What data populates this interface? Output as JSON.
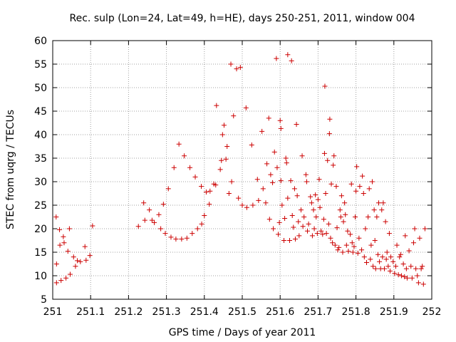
{
  "chart_data": {
    "type": "scatter",
    "title": "Rec. sulp (Lon=24, Lat=49, h=HE), days 250-251, 2011, window 004",
    "xlabel": "GPS time / Days of year 2011",
    "ylabel": "STEC from uqrg / TECUs",
    "xlim": [
      251,
      252
    ],
    "ylim": [
      5,
      60
    ],
    "xticks": [
      251,
      251.1,
      251.2,
      251.3,
      251.4,
      251.5,
      251.6,
      251.7,
      251.8,
      251.9,
      252
    ],
    "xtick_labels": [
      "251",
      "251.1",
      "251.2",
      "251.3",
      "251.4",
      "251.5",
      "251.6",
      "251.7",
      "251.8",
      "251.9",
      "252"
    ],
    "yticks": [
      5,
      10,
      15,
      20,
      25,
      30,
      35,
      40,
      45,
      50,
      55,
      60
    ],
    "ytick_labels": [
      "5",
      "10",
      "15",
      "20",
      "25",
      "30",
      "35",
      "40",
      "45",
      "50",
      "55",
      "60"
    ],
    "grid": true,
    "marker": "+",
    "color": "#cc0000",
    "points": [
      [
        251.009,
        22.5
      ],
      [
        251.01,
        12.5
      ],
      [
        251.01,
        8.5
      ],
      [
        251.018,
        19.8
      ],
      [
        251.019,
        16.5
      ],
      [
        251.022,
        9.0
      ],
      [
        251.028,
        18.3
      ],
      [
        251.03,
        17.0
      ],
      [
        251.035,
        9.5
      ],
      [
        251.04,
        15.2
      ],
      [
        251.044,
        20.0
      ],
      [
        251.046,
        10.3
      ],
      [
        251.055,
        14.0
      ],
      [
        251.06,
        12.0
      ],
      [
        251.065,
        13.2
      ],
      [
        251.073,
        13.0
      ],
      [
        251.085,
        16.2
      ],
      [
        251.088,
        13.3
      ],
      [
        251.098,
        14.3
      ],
      [
        251.105,
        20.6
      ],
      [
        251.226,
        20.5
      ],
      [
        251.24,
        25.5
      ],
      [
        251.243,
        21.8
      ],
      [
        251.255,
        24.0
      ],
      [
        251.262,
        21.8
      ],
      [
        251.268,
        21.3
      ],
      [
        251.28,
        23.0
      ],
      [
        251.285,
        20.0
      ],
      [
        251.292,
        25.2
      ],
      [
        251.297,
        19.0
      ],
      [
        251.305,
        28.5
      ],
      [
        251.312,
        18.2
      ],
      [
        251.32,
        33.0
      ],
      [
        251.325,
        17.8
      ],
      [
        251.333,
        38.0
      ],
      [
        251.34,
        17.8
      ],
      [
        251.347,
        35.5
      ],
      [
        251.354,
        18.0
      ],
      [
        251.362,
        33.0
      ],
      [
        251.368,
        19.0
      ],
      [
        251.376,
        31.0
      ],
      [
        251.382,
        20.0
      ],
      [
        251.392,
        29.0
      ],
      [
        251.393,
        21.0
      ],
      [
        251.4,
        22.8
      ],
      [
        251.405,
        27.8
      ],
      [
        251.413,
        25.2
      ],
      [
        251.415,
        28.0
      ],
      [
        251.425,
        29.5
      ],
      [
        251.43,
        29.3
      ],
      [
        251.432,
        46.2
      ],
      [
        251.442,
        32.6
      ],
      [
        251.445,
        34.5
      ],
      [
        251.448,
        40.0
      ],
      [
        251.452,
        42.0
      ],
      [
        251.457,
        34.8
      ],
      [
        251.46,
        37.5
      ],
      [
        251.465,
        27.5
      ],
      [
        251.47,
        55.0
      ],
      [
        251.472,
        30.0
      ],
      [
        251.477,
        44.0
      ],
      [
        251.485,
        54.0
      ],
      [
        251.49,
        26.5
      ],
      [
        251.495,
        54.3
      ],
      [
        251.5,
        25.0
      ],
      [
        251.51,
        45.7
      ],
      [
        251.512,
        24.5
      ],
      [
        251.525,
        37.8
      ],
      [
        251.528,
        25.0
      ],
      [
        251.54,
        30.5
      ],
      [
        251.543,
        26.0
      ],
      [
        251.552,
        40.7
      ],
      [
        251.555,
        28.5
      ],
      [
        251.562,
        25.5
      ],
      [
        251.565,
        33.8
      ],
      [
        251.57,
        43.5
      ],
      [
        251.575,
        31.5
      ],
      [
        251.572,
        22.0
      ],
      [
        251.58,
        29.8
      ],
      [
        251.582,
        20.0
      ],
      [
        251.585,
        36.3
      ],
      [
        251.59,
        56.2
      ],
      [
        251.592,
        33.0
      ],
      [
        251.595,
        18.8
      ],
      [
        251.598,
        21.3
      ],
      [
        251.6,
        43.0
      ],
      [
        251.602,
        41.3
      ],
      [
        251.602,
        30.2
      ],
      [
        251.605,
        25.0
      ],
      [
        251.61,
        17.5
      ],
      [
        251.612,
        22.2
      ],
      [
        251.615,
        35.0
      ],
      [
        251.617,
        34.0
      ],
      [
        251.62,
        57.0
      ],
      [
        251.62,
        26.5
      ],
      [
        251.625,
        17.5
      ],
      [
        251.628,
        30.2
      ],
      [
        251.63,
        55.7
      ],
      [
        251.632,
        22.8
      ],
      [
        251.635,
        20.3
      ],
      [
        251.638,
        28.5
      ],
      [
        251.64,
        17.8
      ],
      [
        251.643,
        42.2
      ],
      [
        251.645,
        27.0
      ],
      [
        251.648,
        21.5
      ],
      [
        251.65,
        18.5
      ],
      [
        251.655,
        24.0
      ],
      [
        251.658,
        35.5
      ],
      [
        251.66,
        20.5
      ],
      [
        251.663,
        22.5
      ],
      [
        251.668,
        31.5
      ],
      [
        251.67,
        30.0
      ],
      [
        251.672,
        19.5
      ],
      [
        251.675,
        21.0
      ],
      [
        251.68,
        26.8
      ],
      [
        251.683,
        25.5
      ],
      [
        251.685,
        18.5
      ],
      [
        251.688,
        24.0
      ],
      [
        251.69,
        20.0
      ],
      [
        251.693,
        27.2
      ],
      [
        251.695,
        22.5
      ],
      [
        251.698,
        19.0
      ],
      [
        251.7,
        26.2
      ],
      [
        251.703,
        30.5
      ],
      [
        251.705,
        24.5
      ],
      [
        251.708,
        19.5
      ],
      [
        251.712,
        18.8
      ],
      [
        251.715,
        22.0
      ],
      [
        251.717,
        36.0
      ],
      [
        251.718,
        50.3
      ],
      [
        251.72,
        27.5
      ],
      [
        251.722,
        19.0
      ],
      [
        251.725,
        34.5
      ],
      [
        251.728,
        21.0
      ],
      [
        251.73,
        40.2
      ],
      [
        251.731,
        43.3
      ],
      [
        251.733,
        18.0
      ],
      [
        251.735,
        29.5
      ],
      [
        251.738,
        17.0
      ],
      [
        251.74,
        33.5
      ],
      [
        251.742,
        35.5
      ],
      [
        251.745,
        16.5
      ],
      [
        251.748,
        29.0
      ],
      [
        251.75,
        20.2
      ],
      [
        251.752,
        15.5
      ],
      [
        251.755,
        16.0
      ],
      [
        251.758,
        24.0
      ],
      [
        251.76,
        22.5
      ],
      [
        251.762,
        27.0
      ],
      [
        251.765,
        15.0
      ],
      [
        251.767,
        21.5
      ],
      [
        251.77,
        25.5
      ],
      [
        251.772,
        23.0
      ],
      [
        251.775,
        16.5
      ],
      [
        251.778,
        19.5
      ],
      [
        251.78,
        15.2
      ],
      [
        251.785,
        18.8
      ],
      [
        251.788,
        29.5
      ],
      [
        251.79,
        17.0
      ],
      [
        251.792,
        15.0
      ],
      [
        251.795,
        16.2
      ],
      [
        251.798,
        22.5
      ],
      [
        251.8,
        28.0
      ],
      [
        251.802,
        33.2
      ],
      [
        251.805,
        14.8
      ],
      [
        251.808,
        18.0
      ],
      [
        251.81,
        29.0
      ],
      [
        251.815,
        15.5
      ],
      [
        251.817,
        31.2
      ],
      [
        251.82,
        27.5
      ],
      [
        251.822,
        14.0
      ],
      [
        251.825,
        20.0
      ],
      [
        251.828,
        12.8
      ],
      [
        251.832,
        22.5
      ],
      [
        251.835,
        28.5
      ],
      [
        251.838,
        13.5
      ],
      [
        251.84,
        16.5
      ],
      [
        251.843,
        30.0
      ],
      [
        251.845,
        12.0
      ],
      [
        251.848,
        24.0
      ],
      [
        251.85,
        17.5
      ],
      [
        251.852,
        11.5
      ],
      [
        251.855,
        22.5
      ],
      [
        251.858,
        14.5
      ],
      [
        251.86,
        25.5
      ],
      [
        251.862,
        13.0
      ],
      [
        251.865,
        11.5
      ],
      [
        251.868,
        24.0
      ],
      [
        251.87,
        14.0
      ],
      [
        251.872,
        25.5
      ],
      [
        251.875,
        11.5
      ],
      [
        251.878,
        21.5
      ],
      [
        251.88,
        13.5
      ],
      [
        251.882,
        15.0
      ],
      [
        251.885,
        12.0
      ],
      [
        251.888,
        19.0
      ],
      [
        251.89,
        11.0
      ],
      [
        251.892,
        14.0
      ],
      [
        251.898,
        13.0
      ],
      [
        251.902,
        10.5
      ],
      [
        251.905,
        12.0
      ],
      [
        251.908,
        16.5
      ],
      [
        251.912,
        10.2
      ],
      [
        251.915,
        14.0
      ],
      [
        251.918,
        14.5
      ],
      [
        251.92,
        10.0
      ],
      [
        251.925,
        12.5
      ],
      [
        251.928,
        9.8
      ],
      [
        251.93,
        18.5
      ],
      [
        251.933,
        11.5
      ],
      [
        251.935,
        9.5
      ],
      [
        251.94,
        15.3
      ],
      [
        251.945,
        12.0
      ],
      [
        251.948,
        9.5
      ],
      [
        251.952,
        17.0
      ],
      [
        251.955,
        20.0
      ],
      [
        251.958,
        11.5
      ],
      [
        251.962,
        10.0
      ],
      [
        251.965,
        8.5
      ],
      [
        251.968,
        18.0
      ],
      [
        251.972,
        11.5
      ],
      [
        251.975,
        12.0
      ],
      [
        251.978,
        8.2
      ],
      [
        251.982,
        20.0
      ]
    ]
  }
}
